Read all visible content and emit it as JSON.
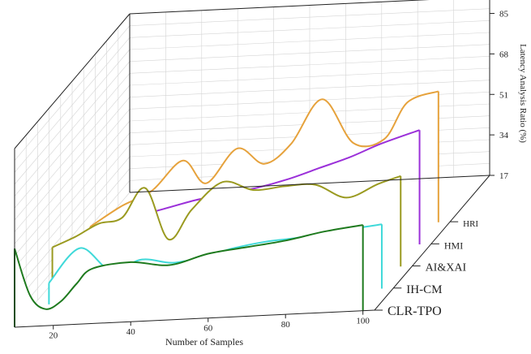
{
  "chart_data": {
    "type": "line",
    "subtype": "3d-waterfall",
    "xlabel": "Number of Samples",
    "ylabel": "Latency Analysis Ratio (%)",
    "x_ticks": [
      "20",
      "40",
      "60",
      "80",
      "100"
    ],
    "y_ticks": [
      "17",
      "34",
      "51",
      "68",
      "85"
    ],
    "xlim": [
      10,
      103
    ],
    "ylim": [
      17,
      92
    ],
    "grid": true,
    "series": [
      {
        "name": "HRI",
        "color": "#e6a23c",
        "x": [
          10,
          18,
          26,
          34,
          40,
          48,
          55,
          62,
          70,
          78,
          86,
          92,
          100
        ],
        "values": [
          22,
          30,
          36,
          48,
          38,
          52,
          45,
          53,
          71,
          52,
          53,
          68,
          72
        ]
      },
      {
        "name": "HMI",
        "color": "#9b30d9",
        "x": [
          10,
          18,
          26,
          34,
          42,
          50,
          58,
          66,
          74,
          82,
          90,
          100
        ],
        "values": [
          25,
          30,
          34,
          37,
          40,
          42,
          44,
          47,
          51,
          55,
          60,
          65
        ]
      },
      {
        "name": "AI&XAI",
        "color": "#9a9a20",
        "x": [
          10,
          16,
          22,
          28,
          34,
          40,
          46,
          54,
          62,
          70,
          78,
          86,
          94,
          100
        ],
        "values": [
          32,
          36,
          41,
          43,
          55,
          33,
          45,
          56,
          52,
          53,
          53,
          47,
          52,
          55
        ]
      },
      {
        "name": "IH-CM",
        "color": "#3fd9d9",
        "x": [
          14,
          22,
          30,
          38,
          46,
          54,
          62,
          70,
          78,
          86,
          94,
          100
        ],
        "values": [
          26,
          40,
          30,
          34,
          32,
          34,
          37,
          39,
          40,
          42,
          43,
          44
        ]
      },
      {
        "name": "CLR-TPO",
        "color": "#1e7a1e",
        "x": [
          10,
          14,
          18,
          22,
          26,
          30,
          40,
          50,
          60,
          70,
          80,
          90,
          100
        ],
        "values": [
          50,
          30,
          24,
          27,
          34,
          40,
          42,
          40,
          44,
          46,
          48,
          51,
          53
        ]
      }
    ]
  }
}
